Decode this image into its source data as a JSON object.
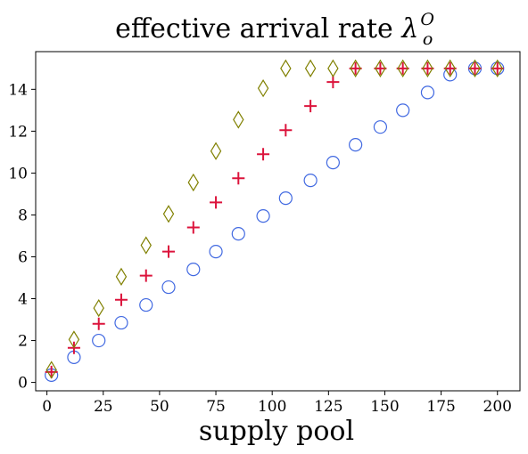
{
  "chart_data": {
    "type": "scatter",
    "title": {
      "text": "effective arrival rate ",
      "symbol": "λ",
      "superscript": "O",
      "subscript": "o"
    },
    "xlabel": "supply pool",
    "ylabel": "",
    "xlim": [
      -5,
      210
    ],
    "ylim": [
      -0.4,
      15.8
    ],
    "xticks": [
      0,
      25,
      50,
      75,
      100,
      125,
      150,
      175,
      200
    ],
    "yticks": [
      0,
      2,
      4,
      6,
      8,
      10,
      12,
      14
    ],
    "grid": false,
    "legend": "none",
    "x": [
      2,
      12,
      23,
      33,
      44,
      54,
      65,
      75,
      85,
      96,
      106,
      117,
      127,
      137,
      148,
      158,
      169,
      179,
      190,
      200
    ],
    "series": [
      {
        "marker": "circle",
        "color": "#4169e1",
        "values": [
          0.35,
          1.2,
          2.0,
          2.85,
          3.7,
          4.55,
          5.4,
          6.25,
          7.1,
          7.95,
          8.8,
          9.65,
          10.5,
          11.35,
          12.2,
          13.0,
          13.85,
          14.7,
          15.0,
          15.0
        ]
      },
      {
        "marker": "plus",
        "color": "#dc143c",
        "values": [
          0.5,
          1.65,
          2.8,
          3.95,
          5.1,
          6.25,
          7.4,
          8.6,
          9.75,
          10.9,
          12.05,
          13.2,
          14.35,
          15.0,
          15.0,
          15.0,
          15.0,
          15.0,
          15.0,
          15.0
        ]
      },
      {
        "marker": "thin_diamond",
        "color": "#808000",
        "values": [
          0.6,
          2.05,
          3.55,
          5.05,
          6.55,
          8.05,
          9.55,
          11.05,
          12.55,
          14.05,
          15.0,
          15.0,
          15.0,
          15.0,
          15.0,
          15.0,
          15.0,
          15.0,
          15.0,
          15.0
        ]
      }
    ]
  }
}
